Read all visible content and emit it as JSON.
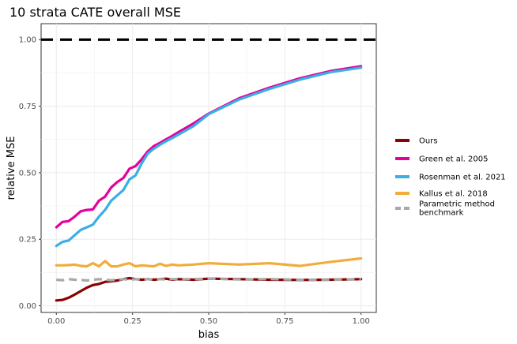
{
  "chart_data": {
    "type": "line",
    "title": "10 strata CATE overall MSE",
    "xlabel": "bias",
    "ylabel": "relative MSE",
    "xlim": [
      -0.05,
      1.05
    ],
    "ylim": [
      -0.025,
      1.06
    ],
    "xticks": [
      0.0,
      0.25,
      0.5,
      0.75,
      1.0
    ],
    "xtick_labels": [
      "0.00",
      "0.25",
      "0.50",
      "0.75",
      "1.00"
    ],
    "yticks": [
      0.0,
      0.25,
      0.5,
      0.75,
      1.0
    ],
    "ytick_labels": [
      "0.00",
      "0.25",
      "0.50",
      "0.75",
      "1.00"
    ],
    "grid": true,
    "reference_line": {
      "y": 1.0,
      "style": "dashed",
      "color": "#000000"
    },
    "legend_position": "right",
    "x": [
      0.0,
      0.02,
      0.04,
      0.06,
      0.08,
      0.1,
      0.12,
      0.14,
      0.16,
      0.18,
      0.2,
      0.22,
      0.24,
      0.26,
      0.28,
      0.3,
      0.32,
      0.34,
      0.36,
      0.38,
      0.4,
      0.45,
      0.5,
      0.6,
      0.7,
      0.8,
      0.9,
      1.0
    ],
    "series": [
      {
        "name": "Ours",
        "color": "#8b0000",
        "dashed": false,
        "values": [
          0.02,
          0.022,
          0.03,
          0.042,
          0.055,
          0.068,
          0.078,
          0.082,
          0.09,
          0.092,
          0.095,
          0.1,
          0.104,
          0.1,
          0.098,
          0.1,
          0.098,
          0.1,
          0.102,
          0.098,
          0.1,
          0.098,
          0.102,
          0.1,
          0.098,
          0.097,
          0.098,
          0.1
        ]
      },
      {
        "name": "Green et al. 2005",
        "color": "#e6009a",
        "dashed": false,
        "values": [
          0.295,
          0.315,
          0.318,
          0.335,
          0.355,
          0.36,
          0.362,
          0.395,
          0.41,
          0.445,
          0.465,
          0.48,
          0.515,
          0.525,
          0.55,
          0.58,
          0.6,
          0.612,
          0.625,
          0.638,
          0.652,
          0.685,
          0.722,
          0.78,
          0.82,
          0.855,
          0.882,
          0.9
        ]
      },
      {
        "name": "Rosenman et al. 2021",
        "color": "#3aaee6",
        "dashed": false,
        "values": [
          0.225,
          0.24,
          0.245,
          0.265,
          0.285,
          0.295,
          0.305,
          0.335,
          0.36,
          0.395,
          0.415,
          0.435,
          0.475,
          0.49,
          0.535,
          0.572,
          0.59,
          0.605,
          0.618,
          0.63,
          0.643,
          0.675,
          0.72,
          0.775,
          0.815,
          0.85,
          0.878,
          0.895
        ]
      },
      {
        "name": "Kallus et al. 2018",
        "color": "#f0ad3c",
        "dashed": false,
        "values": [
          0.152,
          0.152,
          0.153,
          0.155,
          0.15,
          0.148,
          0.16,
          0.148,
          0.168,
          0.148,
          0.148,
          0.155,
          0.16,
          0.148,
          0.152,
          0.15,
          0.148,
          0.158,
          0.15,
          0.155,
          0.152,
          0.155,
          0.16,
          0.155,
          0.16,
          0.15,
          0.165,
          0.178
        ]
      },
      {
        "name": "Parametric method benchmark",
        "legend_lines": [
          "Parametric method",
          "benchmark"
        ],
        "color": "#a8a8a8",
        "dashed": true,
        "values": [
          0.098,
          0.096,
          0.1,
          0.098,
          0.097,
          0.095,
          0.098,
          0.1,
          0.098,
          0.096,
          0.098,
          0.1,
          0.098,
          0.1,
          0.097,
          0.1,
          0.098,
          0.1,
          0.099,
          0.1,
          0.1,
          0.1,
          0.102,
          0.099,
          0.1,
          0.098,
          0.097,
          0.1
        ]
      }
    ]
  }
}
